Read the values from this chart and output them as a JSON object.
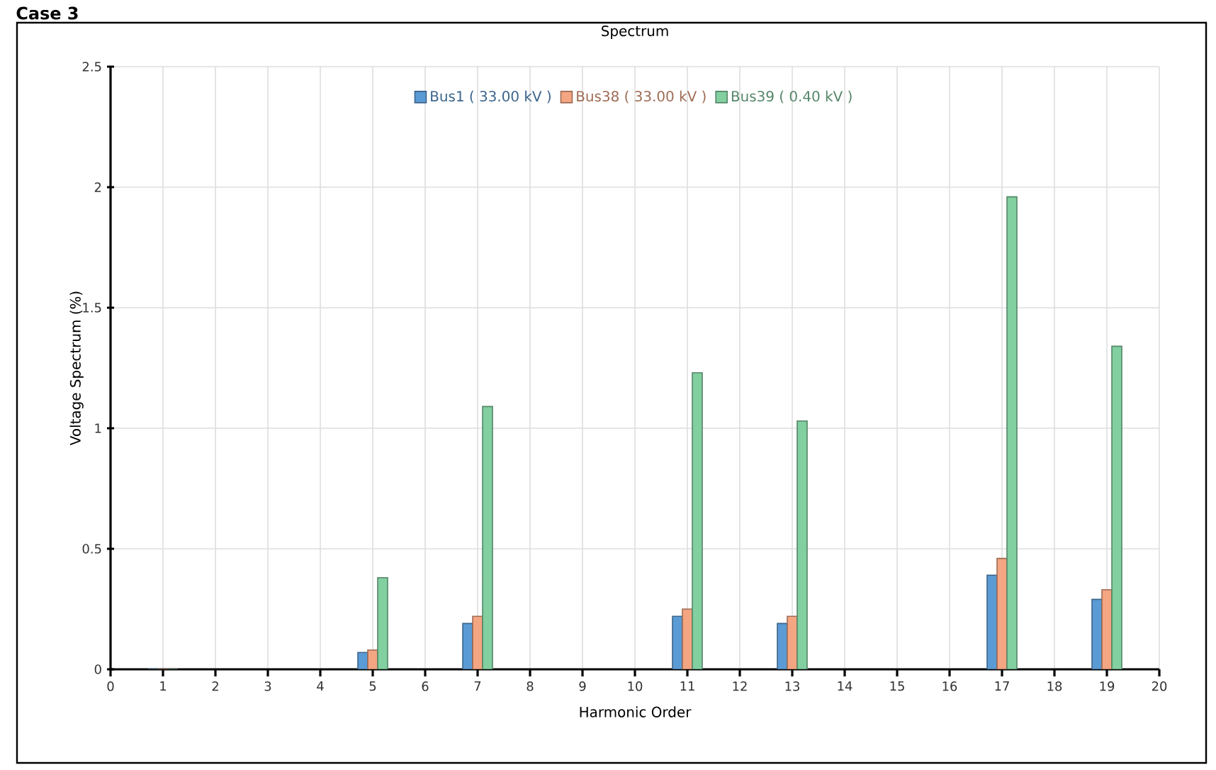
{
  "chart_data": {
    "type": "bar",
    "title": "Spectrum",
    "xlabel": "Harmonic Order",
    "ylabel": "Voltage Spectrum (%)",
    "annotations": [
      "Case 3"
    ],
    "xlim": [
      0,
      20
    ],
    "xticks": [
      0,
      1,
      2,
      3,
      4,
      5,
      6,
      7,
      8,
      9,
      10,
      11,
      12,
      13,
      14,
      15,
      16,
      17,
      18,
      19,
      20
    ],
    "ylim": [
      0,
      2.5
    ],
    "yticks": [
      0,
      0.5,
      1,
      1.5,
      2,
      2.5
    ],
    "grid": true,
    "legend": "top",
    "series": [
      {
        "name": "Bus1 ( 33.00 kV )",
        "color": "#5b9bd5",
        "x": [
          1,
          5,
          7,
          11,
          13,
          17,
          19
        ],
        "values": [
          0,
          0.07,
          0.19,
          0.22,
          0.19,
          0.39,
          0.29
        ]
      },
      {
        "name": "Bus38 ( 33.00 kV )",
        "color": "#f4a582",
        "x": [
          1,
          5,
          7,
          11,
          13,
          17,
          19
        ],
        "values": [
          0,
          0.08,
          0.22,
          0.25,
          0.22,
          0.46,
          0.33
        ]
      },
      {
        "name": "Bus39 ( 0.40 kV )",
        "color": "#82cfa0",
        "x": [
          1,
          5,
          7,
          11,
          13,
          17,
          19
        ],
        "values": [
          0,
          0.38,
          1.09,
          1.23,
          1.03,
          1.96,
          1.34
        ]
      }
    ]
  }
}
